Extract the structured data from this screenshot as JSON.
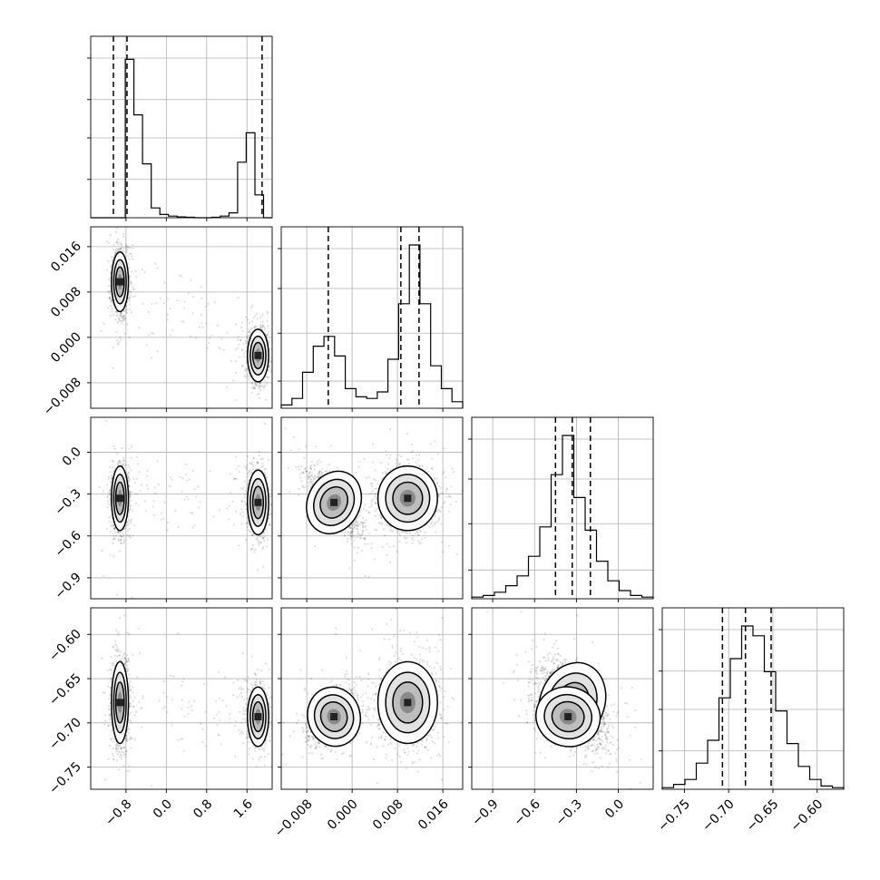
{
  "chart_data": {
    "type": "corner",
    "title": "",
    "grid": true,
    "params": [
      {
        "range": [
          -1.5,
          2.1
        ],
        "ticks": [
          -0.8,
          0.0,
          0.8,
          1.6
        ],
        "tick_labels": [
          "−0.8",
          "0.0",
          "0.8",
          "1.6"
        ],
        "quantiles": [
          -1.05,
          -0.78,
          1.9
        ],
        "hist_bins": [
          0,
          0,
          0,
          0,
          0.97,
          0.63,
          0.33,
          0.06,
          0.02,
          0.01,
          0.005,
          0.003,
          0,
          0,
          0.003,
          0.01,
          0.03,
          0.34,
          0.52,
          0.14,
          0
        ],
        "hist_ticks": [
          0.24,
          0.5,
          0.74,
          1.0
        ]
      },
      {
        "range": [
          -0.0125,
          0.0195
        ],
        "ticks": [
          -0.008,
          0.0,
          0.008,
          0.016
        ],
        "tick_labels": [
          "−0.008",
          "0.000",
          "0.008",
          "0.016"
        ],
        "quantiles": [
          -0.0042,
          0.0086,
          0.0118
        ],
        "hist_bins": [
          0.02,
          0.06,
          0.22,
          0.38,
          0.44,
          0.32,
          0.12,
          0.07,
          0.06,
          0.1,
          0.3,
          0.64,
          1.0,
          0.64,
          0.26,
          0.12,
          0.04
        ],
        "hist_ticks": [
          0.17,
          0.47,
          0.75,
          1.0
        ]
      },
      {
        "range": [
          -1.05,
          0.25
        ],
        "ticks": [
          -0.9,
          -0.6,
          -0.3,
          0.0
        ],
        "tick_labels": [
          "−0.9",
          "−0.6",
          "−0.3",
          "0.0"
        ],
        "quantiles": [
          -0.45,
          -0.33,
          -0.2
        ],
        "hist_bins": [
          0.01,
          0.02,
          0.04,
          0.08,
          0.14,
          0.26,
          0.44,
          0.76,
          1.0,
          0.62,
          0.42,
          0.23,
          0.11,
          0.05,
          0.02,
          0.01
        ],
        "hist_ticks": [
          0.18,
          0.47,
          0.75,
          1.0
        ]
      },
      {
        "range": [
          -0.775,
          -0.57
        ],
        "ticks": [
          -0.75,
          -0.7,
          -0.65,
          -0.6
        ],
        "tick_labels": [
          "−0.75",
          "−0.70",
          "−0.65",
          "−0.60"
        ],
        "quantiles": [
          -0.707,
          -0.681,
          -0.652
        ],
        "hist_bins": [
          0.01,
          0.03,
          0.06,
          0.16,
          0.3,
          0.56,
          0.8,
          1.0,
          0.94,
          0.72,
          0.48,
          0.28,
          0.14,
          0.06,
          0.02,
          0.01
        ],
        "hist_ticks": [
          0.24,
          0.5,
          0.74,
          1.0
        ]
      }
    ],
    "modes": [
      {
        "weight": 0.58,
        "mean": [
          -0.92,
          0.0098,
          -0.33,
          -0.677
        ],
        "sd": [
          0.08,
          0.0025,
          0.11,
          0.022
        ]
      },
      {
        "weight": 0.42,
        "mean": [
          1.82,
          -0.0032,
          -0.36,
          -0.693
        ],
        "sd": [
          0.1,
          0.0022,
          0.11,
          0.016
        ]
      }
    ],
    "pair_offsets": {
      "1-2": [
        0.01,
        -0.06
      ],
      "1-3": [
        -0.012,
        0.0
      ]
    },
    "pair_correlation": {
      "1-2": [
        0.0,
        -0.75
      ],
      "1-3": [
        0.0,
        0.4
      ],
      "2-3": [
        -0.55,
        -0.5
      ]
    }
  }
}
